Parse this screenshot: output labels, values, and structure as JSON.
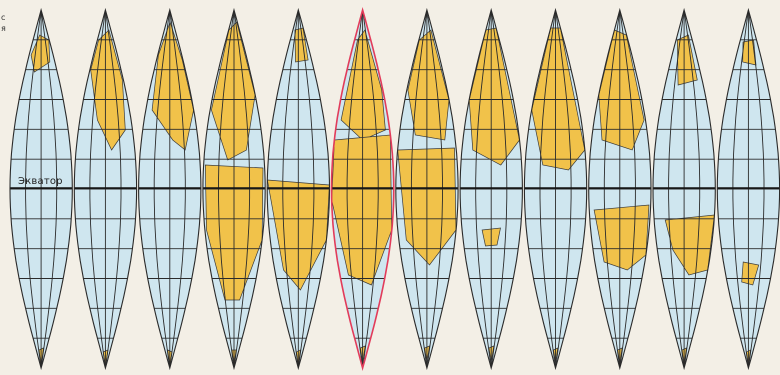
{
  "map": {
    "equator_label": "Экватор",
    "corner_text": "с\nя",
    "gore_count": 12,
    "highlighted_gore_index": 5,
    "colors": {
      "ocean": "#cfe6ef",
      "land": "#f1c24a",
      "grid": "#2b2b2b",
      "highlight": "#e23b5a",
      "paper": "#f3efe6"
    }
  }
}
